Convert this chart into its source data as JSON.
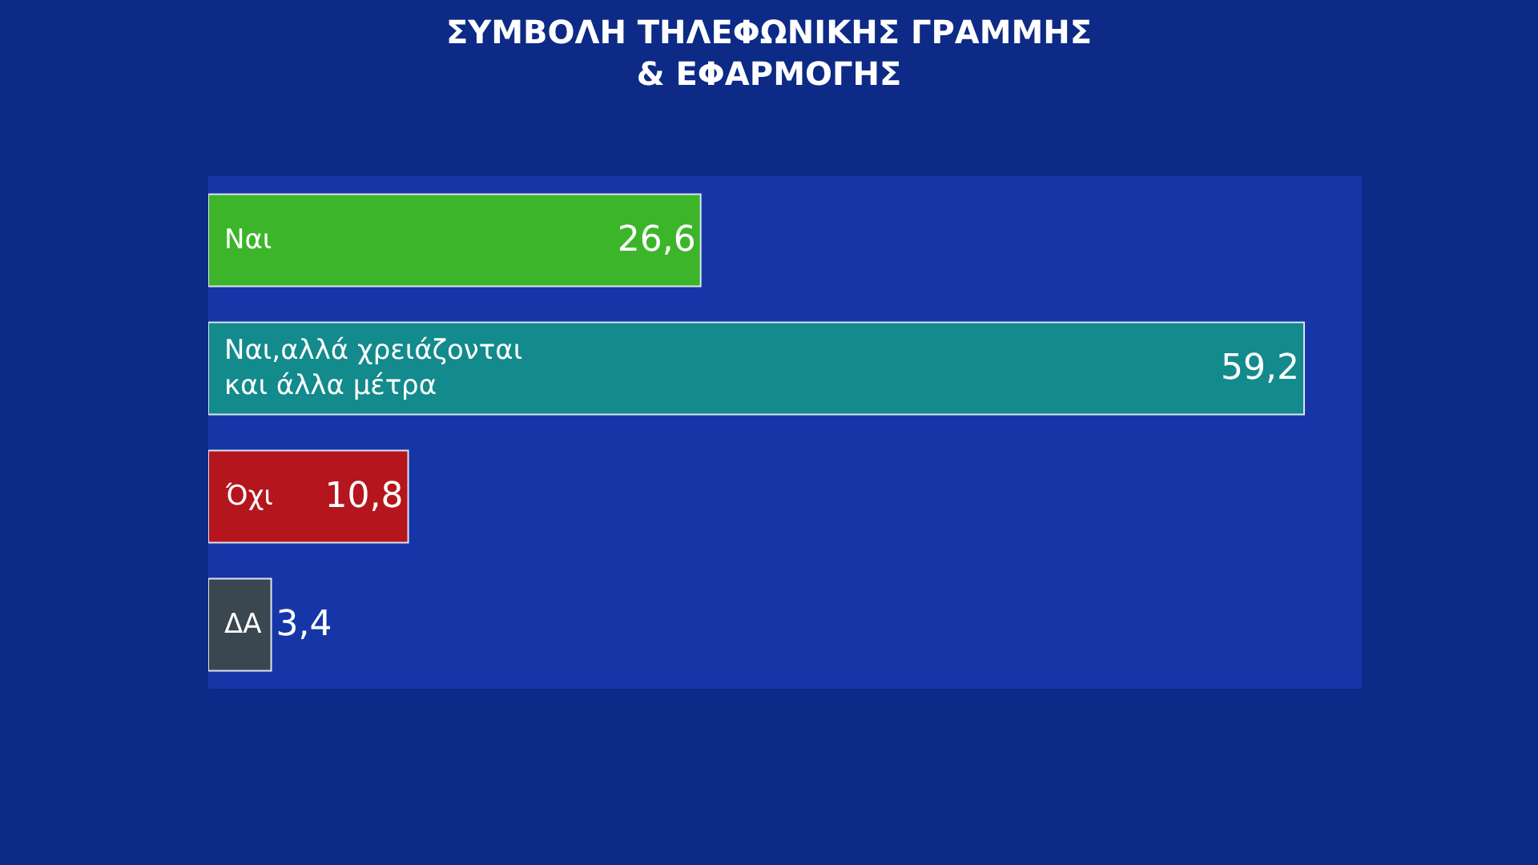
{
  "chart_data": {
    "type": "bar",
    "orientation": "horizontal",
    "title": "ΣΥΜΒΟΛΗ ΤΗΛΕΦΩΝΙΚΗΣ ΓΡΑΜΜΗΣ\n& ΕΦΑΡΜΟΓΗΣ",
    "categories": [
      "Ναι",
      "Ναι,αλλά χρειάζονται\nκαι άλλα μέτρα",
      "Όχι",
      "ΔΑ"
    ],
    "values": [
      26.6,
      59.2,
      10.8,
      3.4
    ],
    "value_labels": [
      "26,6",
      "59,2",
      "10,8",
      "3,4"
    ],
    "colors": [
      "#3db52a",
      "#138a8c",
      "#b5151c",
      "#3a4650"
    ],
    "legend": false
  }
}
